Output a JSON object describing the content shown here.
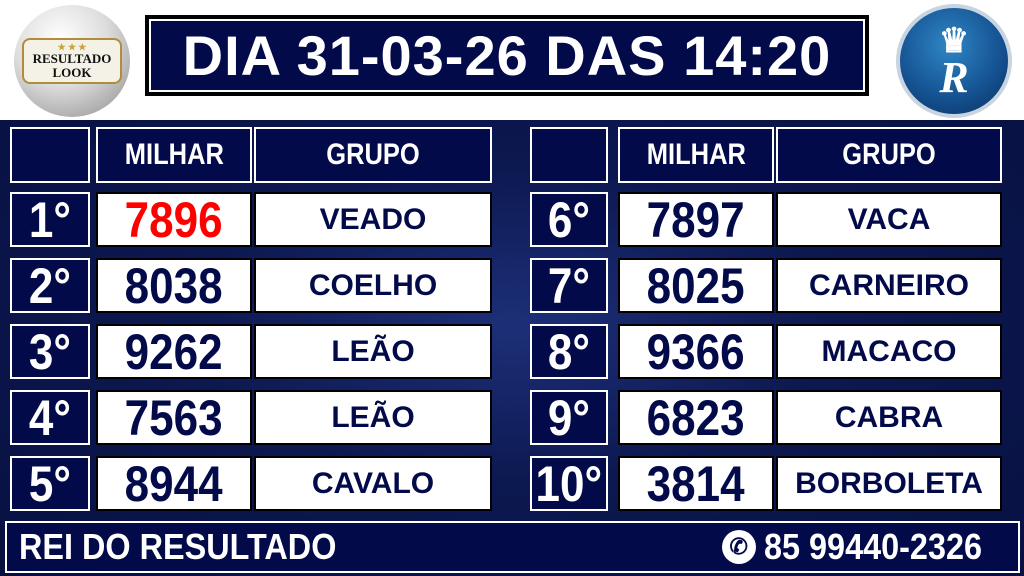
{
  "header": {
    "title": "DIA 31-03-26 DAS 14:20"
  },
  "logos": {
    "left_text_1": "RESULTADO",
    "left_text_2": "LOOK",
    "right_text": "Rei"
  },
  "columns": {
    "milhar": "MILHAR",
    "grupo": "GRUPO"
  },
  "results": [
    {
      "rank": "1°",
      "milhar": "7896",
      "grupo": "VEADO",
      "highlight": "#ff0000"
    },
    {
      "rank": "2°",
      "milhar": "8038",
      "grupo": "COELHO"
    },
    {
      "rank": "3°",
      "milhar": "9262",
      "grupo": "LEÃO"
    },
    {
      "rank": "4°",
      "milhar": "7563",
      "grupo": "LEÃO"
    },
    {
      "rank": "5°",
      "milhar": "8944",
      "grupo": "CAVALO"
    },
    {
      "rank": "6°",
      "milhar": "7897",
      "grupo": "VACA"
    },
    {
      "rank": "7°",
      "milhar": "8025",
      "grupo": "CARNEIRO"
    },
    {
      "rank": "8°",
      "milhar": "9366",
      "grupo": "MACACO"
    },
    {
      "rank": "9°",
      "milhar": "6823",
      "grupo": "CABRA"
    },
    {
      "rank": "10°",
      "milhar": "3814",
      "grupo": "BORBOLETA"
    }
  ],
  "footer": {
    "brand": "REI DO RESULTADO",
    "phone": "85 99440-2326",
    "phone_icon": "whatsapp-icon"
  },
  "colors": {
    "navy": "#020a4a",
    "highlight": "#ff0000"
  }
}
